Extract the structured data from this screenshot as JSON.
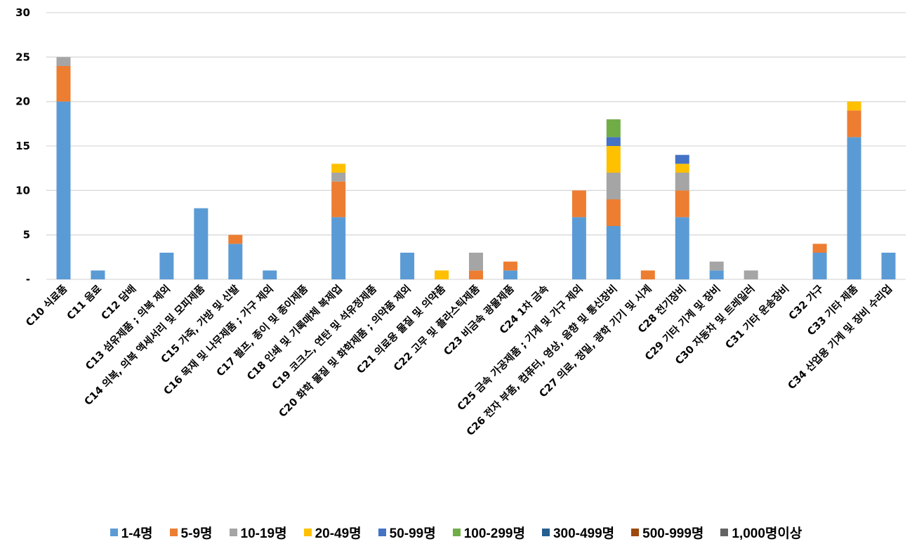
{
  "chart_data": {
    "type": "bar",
    "stacked": true,
    "title": "",
    "xlabel": "",
    "ylabel": "",
    "ylim": [
      0,
      30
    ],
    "yticks": [
      0,
      5,
      10,
      15,
      20,
      25,
      30
    ],
    "ytick_labels": [
      "-",
      "5",
      "10",
      "15",
      "20",
      "25",
      "30"
    ],
    "grid": true,
    "legend_position": "bottom",
    "categories": [
      "C10 식료품",
      "C11 음료",
      "C12 담배",
      "C13 섬유제품 ; 의복 제외",
      "C14 의복, 의복 액세서리 및 모피제품",
      "C15 가죽, 가방 및 신발",
      "C16 목재 및 나무제품 ; 가구 제외",
      "C17 펄프, 종이 및 종이제품",
      "C18 인쇄 및 기록매체 복제업",
      "C19 코크스, 연탄 및 석유정제품",
      "C20 화학 물질 및 화학제품 ; 의약품 제외",
      "C21 의료용 물질 및 의약품",
      "C22 고무 및 플라스틱제품",
      "C23 비금속 광물제품",
      "C24 1차 금속",
      "C25 금속 가공제품 ; 기계 및 가구 제외",
      "C26 전자 부품, 컴퓨터, 영상, 음향 및 통신장비",
      "C27 의료, 정밀, 광학 기기 및 시계",
      "C28 전기장비",
      "C29 기타 기계 및 장비",
      "C30 자동차 및 트레일러",
      "C31 기타 운송장비",
      "C32 가구",
      "C33 기타 제품",
      "C34 산업용 기계 및 장비 수리업"
    ],
    "series": [
      {
        "name": "1-4명",
        "color": "#5B9BD5",
        "values": [
          20,
          1,
          0,
          3,
          8,
          4,
          1,
          0,
          7,
          0,
          3,
          0,
          0,
          1,
          0,
          7,
          6,
          0,
          7,
          1,
          0,
          0,
          3,
          16,
          3
        ]
      },
      {
        "name": "5-9명",
        "color": "#ED7D31",
        "values": [
          4,
          0,
          0,
          0,
          0,
          1,
          0,
          0,
          4,
          0,
          0,
          0,
          1,
          1,
          0,
          3,
          3,
          1,
          3,
          0,
          0,
          0,
          1,
          3,
          0
        ]
      },
      {
        "name": "10-19명",
        "color": "#A5A5A5",
        "values": [
          1,
          0,
          0,
          0,
          0,
          0,
          0,
          0,
          1,
          0,
          0,
          0,
          2,
          0,
          0,
          0,
          3,
          0,
          2,
          1,
          1,
          0,
          0,
          0,
          0
        ]
      },
      {
        "name": "20-49명",
        "color": "#FFC000",
        "values": [
          0,
          0,
          0,
          0,
          0,
          0,
          0,
          0,
          1,
          0,
          0,
          1,
          0,
          0,
          0,
          0,
          3,
          0,
          1,
          0,
          0,
          0,
          0,
          1,
          0
        ]
      },
      {
        "name": "50-99명",
        "color": "#4472C4",
        "values": [
          0,
          0,
          0,
          0,
          0,
          0,
          0,
          0,
          0,
          0,
          0,
          0,
          0,
          0,
          0,
          0,
          1,
          0,
          1,
          0,
          0,
          0,
          0,
          0,
          0
        ]
      },
      {
        "name": "100-299명",
        "color": "#70AD47",
        "values": [
          0,
          0,
          0,
          0,
          0,
          0,
          0,
          0,
          0,
          0,
          0,
          0,
          0,
          0,
          0,
          0,
          2,
          0,
          0,
          0,
          0,
          0,
          0,
          0,
          0
        ]
      },
      {
        "name": "300-499명",
        "color": "#255E91",
        "values": [
          0,
          0,
          0,
          0,
          0,
          0,
          0,
          0,
          0,
          0,
          0,
          0,
          0,
          0,
          0,
          0,
          0,
          0,
          0,
          0,
          0,
          0,
          0,
          0,
          0
        ]
      },
      {
        "name": "500-999명",
        "color": "#9E480E",
        "values": [
          0,
          0,
          0,
          0,
          0,
          0,
          0,
          0,
          0,
          0,
          0,
          0,
          0,
          0,
          0,
          0,
          0,
          0,
          0,
          0,
          0,
          0,
          0,
          0,
          0
        ]
      },
      {
        "name": "1,000명이상",
        "color": "#636363",
        "values": [
          0,
          0,
          0,
          0,
          0,
          0,
          0,
          0,
          0,
          0,
          0,
          0,
          0,
          0,
          0,
          0,
          0,
          0,
          0,
          0,
          0,
          0,
          0,
          0,
          0
        ]
      }
    ]
  }
}
